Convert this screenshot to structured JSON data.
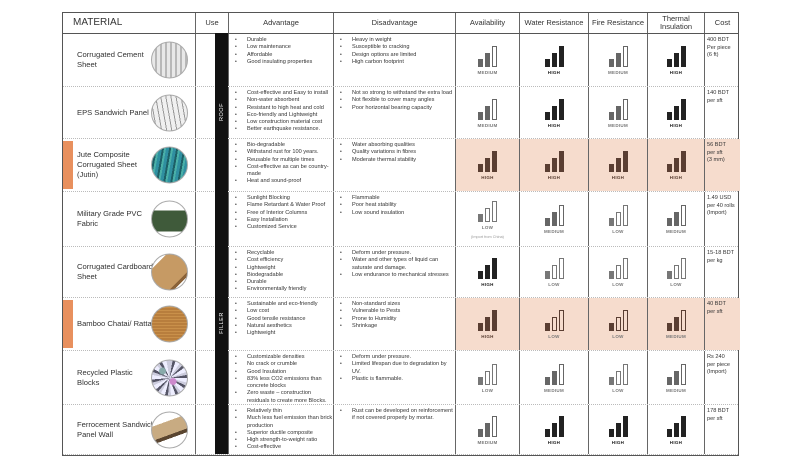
{
  "headers": [
    "MATERIAL",
    "Use",
    "Advantage",
    "Disadvantage",
    "Availability",
    "Water Resistance",
    "Fire Resistance",
    "Thermal Insulation",
    "Cost"
  ],
  "use_groups": [
    {
      "label": "ROOF",
      "rows": [
        0,
        1,
        2
      ]
    },
    {
      "label": "FILLER",
      "rows": [
        3,
        4,
        5,
        6,
        7
      ]
    }
  ],
  "colors": {
    "highlight": "#f6dccd",
    "marker": "#e8905e",
    "high": "#222222",
    "medium": "#666666",
    "low": "#777777",
    "highlight_bars": "#5a3e32"
  },
  "materials": [
    {
      "name": "Corrugated Cement Sheet",
      "image": "corrugated-cement-sheet",
      "highlighted": false,
      "advantages": [
        "Durable",
        "Low maintenance",
        "Affordable",
        "Good insulating properties"
      ],
      "disadvantages": [
        "Heavy in weight",
        "Susceptible to cracking",
        "Design options are limited",
        "High carbon footprint"
      ],
      "ratings": [
        "MEDIUM",
        "HIGH",
        "MEDIUM",
        "HIGH"
      ],
      "cost": [
        "400 BDT",
        "Per piece",
        "(6 ft)"
      ]
    },
    {
      "name": "EPS Sandwich Panel",
      "image": "eps-sandwich-panel",
      "highlighted": false,
      "advantages": [
        "Cost-effective and Easy to install",
        "Non-water absorbent",
        "Resistant to high heat and cold",
        "Eco-friendly and Lightweight",
        "Low construction material cost",
        "Better earthquake resistance."
      ],
      "disadvantages": [
        "Not so strong to withstand the extra load",
        "Not flexible to cover many angles",
        "Poor horizontal bearing capacity"
      ],
      "ratings": [
        "MEDIUM",
        "HIGH",
        "MEDIUM",
        "HIGH"
      ],
      "cost": [
        "140 BDT",
        "per sft"
      ]
    },
    {
      "name": "Jute Composite Corrugated Sheet (Jutin)",
      "image": "jute-composite-sheet",
      "highlighted": true,
      "advantages": [
        "Bio-degradable",
        "Withstand rust for 100 years.",
        "Reusable for multiple times",
        "Cost-effective as can be country-made",
        "Heat and sound-proof"
      ],
      "disadvantages": [
        "Water absorbing qualities",
        "Quality variations in fibres",
        "Moderate thermal stability"
      ],
      "ratings": [
        "HIGH",
        "HIGH",
        "HIGH",
        "HIGH"
      ],
      "cost": [
        "56 BDT",
        "per sft",
        "(3 mm)"
      ]
    },
    {
      "name": "Military Grade PVC Fabric",
      "image": "pvc-fabric-tent",
      "highlighted": false,
      "advantages": [
        "Sunlight Blocking",
        "Flame Retardant & Water Proof",
        "Free of Interior Columns",
        "Easy Installation",
        "Customized Service"
      ],
      "disadvantages": [
        "Flammable",
        "Poor heat stability",
        "Low sound insulation"
      ],
      "ratings": [
        "LOW",
        "MEDIUM",
        "LOW",
        "MEDIUM"
      ],
      "availability_note": "(Import from China)",
      "cost": [
        "1.49 USD",
        "per 40 rolls",
        "(Import)"
      ]
    },
    {
      "name": "Corrugated Cardboard Sheet",
      "image": "cardboard-sheet",
      "highlighted": false,
      "advantages": [
        "Recyclable",
        "Cost efficiency",
        "Lightweight",
        "Biodegradable",
        "Durable",
        "Environmentally friendly"
      ],
      "disadvantages": [
        "Deform under pressure.",
        "Water and other types of liquid can saturate and damage.",
        "Low endurance to mechanical stresses"
      ],
      "ratings": [
        "HIGH",
        "LOW",
        "LOW",
        "LOW"
      ],
      "cost": [
        "15-18 BDT",
        "per kg"
      ]
    },
    {
      "name": "Bamboo Chatai/ Rattan",
      "image": "bamboo-chatai",
      "highlighted": true,
      "advantages": [
        "Sustainable and eco-friendly",
        "Low cost",
        "Good tensile resistance",
        "Natural aesthetics",
        "Lightweight"
      ],
      "disadvantages": [
        "Non-standard sizes",
        "Vulnerable to Pests",
        "Prone to Humidity",
        "Shrinkage"
      ],
      "ratings": [
        "HIGH",
        "LOW",
        "LOW",
        "MEDIUM"
      ],
      "cost": [
        "40 BDT",
        "per sft"
      ]
    },
    {
      "name": "Recycled Plastic Blocks",
      "image": "recycled-plastic",
      "highlighted": false,
      "advantages": [
        "Customizable densities",
        "No crack or crumble",
        "Good Insulation",
        "83% less CO2 emissions than concrete blocks",
        "Zero waste – construction residuals to create more Blocks."
      ],
      "disadvantages": [
        "Deform under pressure.",
        "Limited lifespan due to degradation by UV.",
        "Plastic is flammable."
      ],
      "ratings": [
        "LOW",
        "MEDIUM",
        "LOW",
        "MEDIUM"
      ],
      "cost": [
        "Rs 240",
        "per piece",
        "(Import)"
      ]
    },
    {
      "name": "Ferrocement Sandwich Panel Wall",
      "image": "ferrocement-panel",
      "highlighted": false,
      "advantages": [
        "Relatively thin",
        "Much less fuel emission than brick production",
        "Superior ductile composite",
        "High strength-to-weight ratio",
        "Cost-effective"
      ],
      "disadvantages": [
        "Rust can be developed on reinforcement if not covered properly by mortar."
      ],
      "ratings": [
        "MEDIUM",
        "HIGH",
        "HIGH",
        "HIGH"
      ],
      "cost": [
        "178 BDT",
        "per sft"
      ]
    }
  ]
}
